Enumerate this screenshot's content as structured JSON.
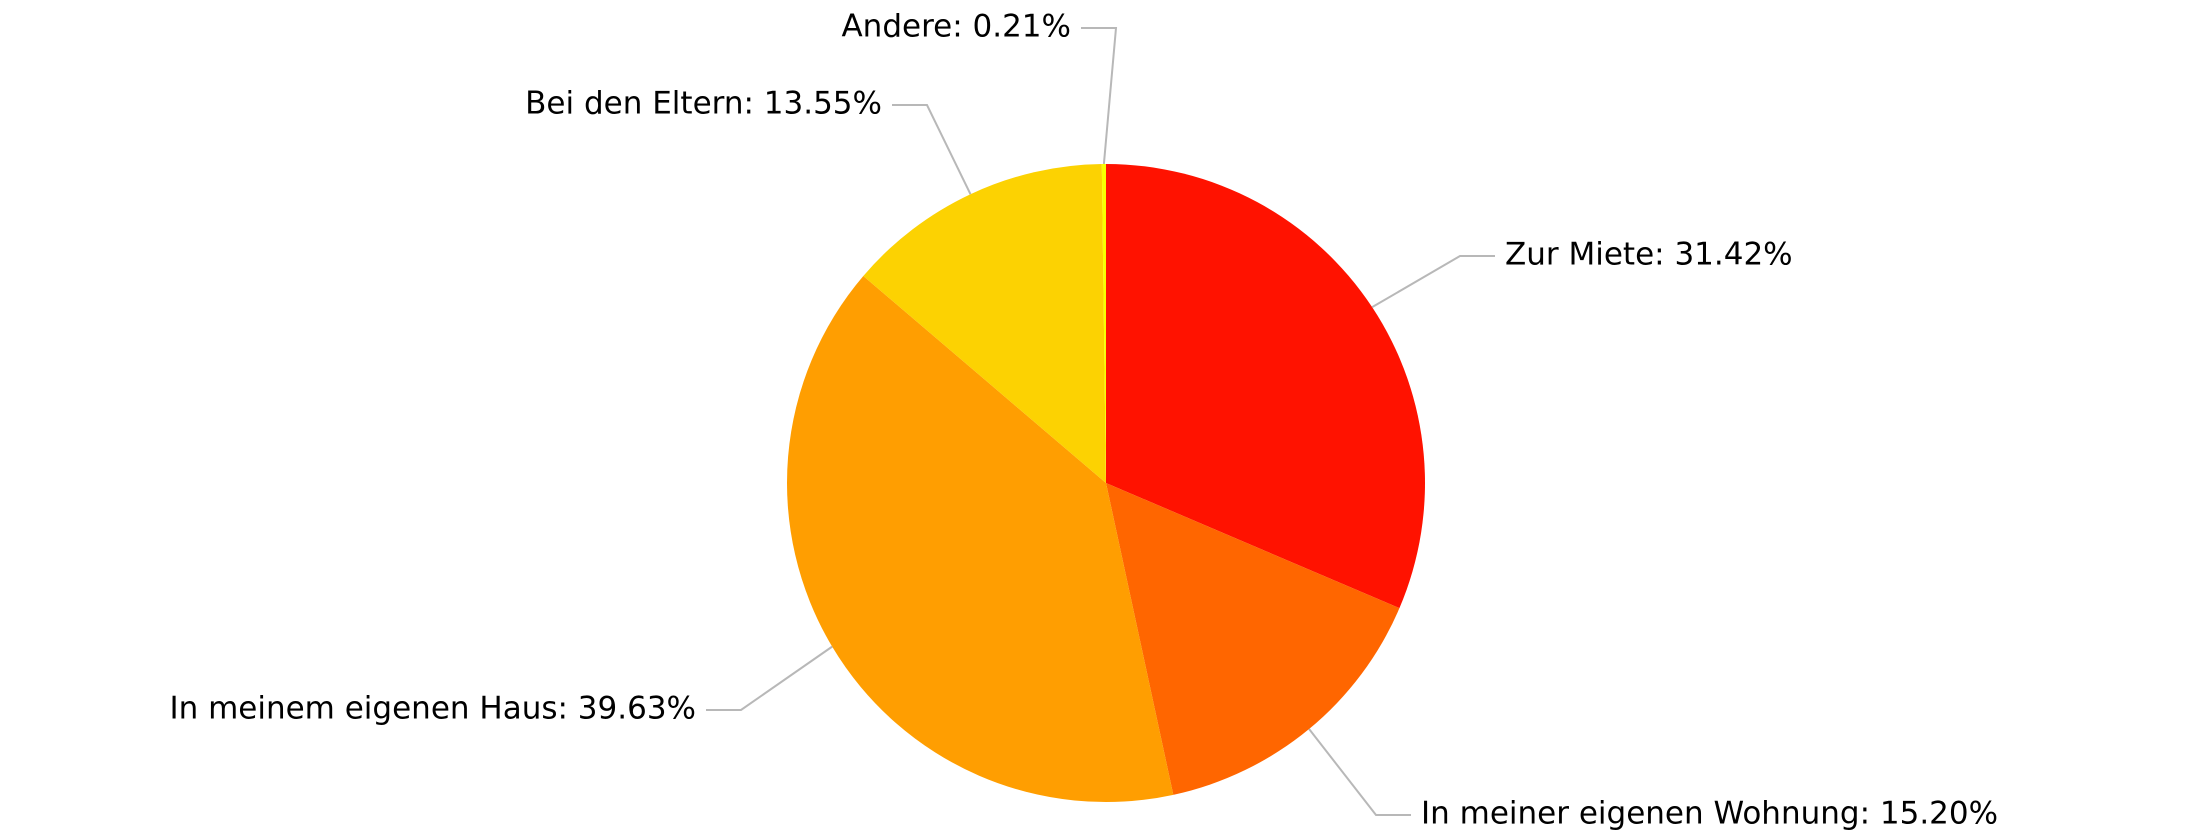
{
  "chart_data": {
    "type": "pie",
    "values": [
      31.42,
      15.2,
      39.63,
      13.55,
      0.21
    ],
    "value_labels": [
      "Zur Miete: 31.42%",
      "In meiner eigenen Wohnung: 15.20%",
      "In meinem eigenen Haus: 39.63%",
      "Bei den Eltern: 13.55%",
      "Andere: 0.21%"
    ],
    "colors": [
      "#ff1200",
      "#ff6600",
      "#ff9e01",
      "#fcd202",
      "#f8ff01"
    ]
  }
}
